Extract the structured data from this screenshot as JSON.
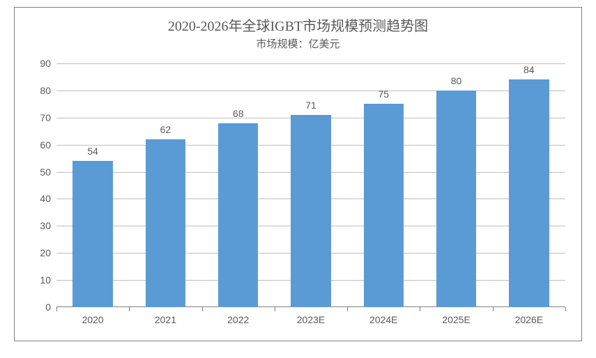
{
  "chart": {
    "type": "bar",
    "title": "2020-2026年全球IGBT市场规模预测趋势图",
    "subtitle": "市场规模：亿美元",
    "title_fontsize": 20,
    "subtitle_fontsize": 15,
    "title_color": "#595959",
    "categories": [
      "2020",
      "2021",
      "2022",
      "2023E",
      "2024E",
      "2025E",
      "2026E"
    ],
    "values": [
      54,
      62,
      68,
      71,
      75,
      80,
      84
    ],
    "bar_color": "#5b9bd5",
    "background_color": "#ffffff",
    "border_color": "#808080",
    "grid_color": "#bfbfbf",
    "text_color": "#595959",
    "ylim": [
      0,
      90
    ],
    "ytick_step": 10,
    "y_ticks": [
      0,
      10,
      20,
      30,
      40,
      50,
      60,
      70,
      80,
      90
    ],
    "bar_width_ratio": 0.55,
    "label_fontsize": 14,
    "axis_font": "Arial"
  }
}
